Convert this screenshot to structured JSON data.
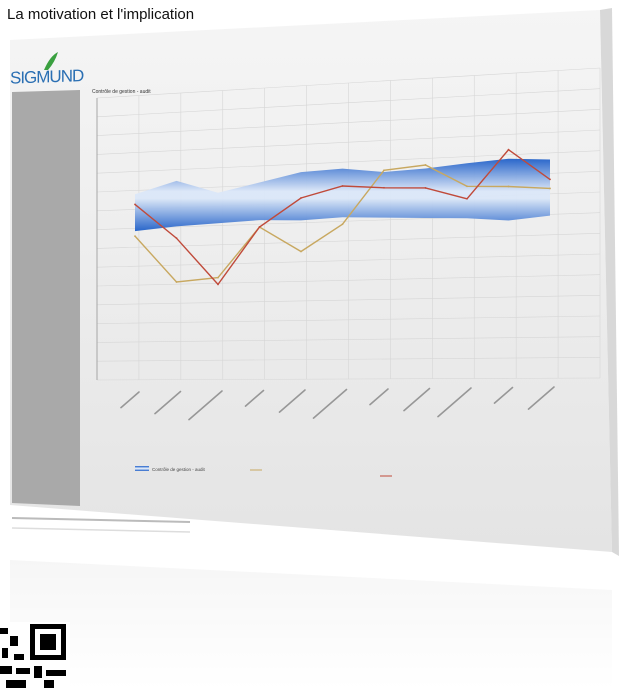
{
  "header": {
    "title": "La motivation et l'implication"
  },
  "logo": {
    "text": "SIGMUND",
    "color": "#2a6fb3",
    "leaf_color": "#3aa040"
  },
  "chart_data": {
    "type": "line",
    "title": "Contrôle de gestion - audit",
    "categories": [
      "",
      "",
      "",
      "",
      "",
      "",
      "",
      "",
      "",
      "",
      ""
    ],
    "band": {
      "name": "Contrôle de gestion - audit",
      "upper": [
        72,
        86,
        70,
        80,
        90,
        92,
        86,
        88,
        92,
        95,
        92
      ],
      "lower": [
        28,
        32,
        34,
        36,
        34,
        36,
        34,
        32,
        30,
        26,
        30
      ]
    },
    "series": [
      {
        "name": "",
        "values": [
          22,
          -34,
          -30,
          28,
          -2,
          28,
          88,
          92,
          66,
          64,
          60
        ],
        "color": "#c8a860"
      },
      {
        "name": "",
        "values": [
          60,
          18,
          -38,
          28,
          60,
          72,
          68,
          66,
          52,
          105,
          70
        ],
        "color": "#c04a3a"
      }
    ],
    "ylim": [
      -150,
      190
    ],
    "grid": true,
    "legend": "bottom"
  },
  "colors": {
    "band": "#2f6fd0",
    "band_light": "#cfe0f7",
    "sidebar": "#a9a9a9",
    "screen": "#f1f1f1"
  }
}
